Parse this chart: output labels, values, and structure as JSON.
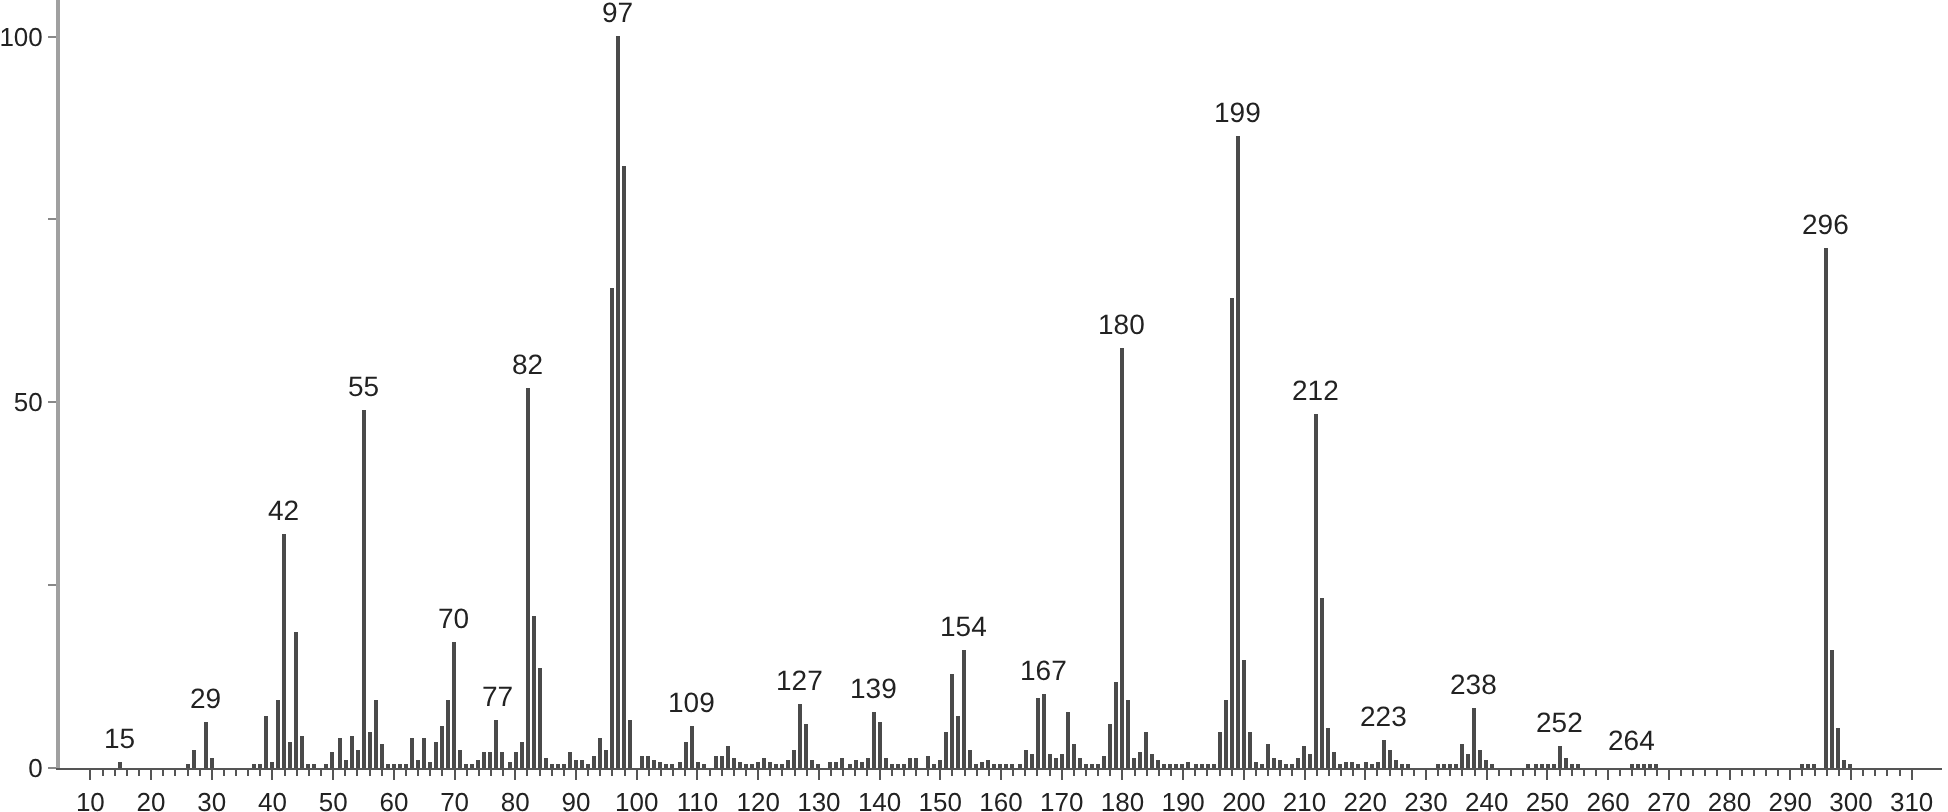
{
  "chart_data": {
    "type": "bar",
    "color": "#4a4a4a",
    "x": [
      15,
      26,
      27,
      29,
      30,
      37,
      38,
      39,
      40,
      41,
      42,
      43,
      44,
      45,
      46,
      47,
      49,
      50,
      51,
      52,
      53,
      54,
      55,
      56,
      57,
      58,
      59,
      60,
      61,
      62,
      63,
      64,
      65,
      66,
      67,
      68,
      69,
      70,
      71,
      72,
      73,
      74,
      75,
      76,
      77,
      78,
      79,
      80,
      81,
      82,
      83,
      84,
      85,
      86,
      87,
      88,
      89,
      90,
      91,
      92,
      93,
      94,
      95,
      96,
      97,
      98,
      99,
      101,
      102,
      103,
      104,
      105,
      106,
      107,
      108,
      109,
      110,
      111,
      113,
      114,
      115,
      116,
      117,
      118,
      119,
      120,
      121,
      122,
      123,
      124,
      125,
      126,
      127,
      128,
      129,
      130,
      132,
      133,
      134,
      135,
      136,
      137,
      138,
      139,
      140,
      141,
      142,
      143,
      144,
      145,
      146,
      148,
      149,
      150,
      151,
      152,
      153,
      154,
      155,
      156,
      157,
      158,
      159,
      160,
      161,
      162,
      163,
      164,
      165,
      166,
      167,
      168,
      169,
      170,
      171,
      172,
      173,
      174,
      175,
      176,
      177,
      178,
      179,
      180,
      181,
      182,
      183,
      184,
      185,
      186,
      187,
      188,
      189,
      190,
      191,
      192,
      193,
      194,
      195,
      196,
      197,
      198,
      199,
      200,
      201,
      202,
      203,
      204,
      205,
      206,
      207,
      208,
      209,
      210,
      211,
      212,
      213,
      214,
      215,
      216,
      217,
      218,
      219,
      220,
      221,
      222,
      223,
      224,
      225,
      226,
      227,
      232,
      233,
      234,
      235,
      236,
      237,
      238,
      239,
      240,
      241,
      247,
      248,
      249,
      250,
      251,
      252,
      253,
      254,
      255,
      264,
      265,
      266,
      267,
      268,
      292,
      293,
      294,
      296,
      297,
      298,
      299,
      300
    ],
    "values": [
      0.7,
      0.6,
      2.5,
      6.4,
      1.5,
      0.6,
      0.6,
      7.0,
      0.9,
      9.2,
      32.1,
      3.6,
      18.7,
      4.5,
      0.6,
      0.6,
      0.5,
      2.3,
      4.1,
      1.2,
      4.5,
      2.5,
      49.0,
      4.8,
      9.4,
      3.2,
      0.5,
      0.6,
      0.6,
      0.6,
      4.1,
      1.2,
      4.2,
      0.9,
      3.6,
      5.7,
      9.4,
      17.1,
      2.5,
      0.6,
      0.6,
      1.2,
      2.3,
      2.3,
      6.5,
      2.3,
      0.9,
      2.3,
      3.5,
      52.0,
      20.8,
      13.7,
      1.5,
      0.6,
      0.6,
      0.6,
      2.3,
      1.2,
      1.2,
      0.6,
      1.6,
      4.2,
      2.4,
      65.7,
      100,
      82.2,
      6.6,
      1.6,
      1.6,
      1.2,
      0.9,
      0.6,
      0.6,
      0.9,
      3.6,
      5.7,
      0.9,
      0.6,
      1.6,
      1.6,
      3.0,
      1.5,
      0.9,
      0.6,
      0.6,
      0.9,
      1.5,
      0.9,
      0.6,
      0.6,
      1.2,
      2.4,
      8.7,
      5.9,
      1.2,
      0.6,
      0.9,
      0.9,
      1.5,
      0.6,
      1.2,
      0.9,
      1.5,
      7.7,
      6.4,
      1.5,
      0.6,
      0.6,
      0.6,
      1.5,
      1.5,
      1.6,
      0.6,
      1.2,
      4.8,
      12.8,
      7.0,
      16.2,
      2.4,
      0.5,
      0.9,
      1.2,
      0.5,
      0.6,
      0.6,
      0.6,
      0.6,
      2.4,
      1.8,
      9.7,
      10.1,
      1.8,
      1.5,
      1.8,
      7.7,
      3.3,
      1.5,
      0.6,
      0.6,
      0.6,
      1.6,
      5.9,
      11.8,
      57.5,
      9.4,
      1.5,
      2.3,
      5.0,
      1.8,
      1.2,
      0.6,
      0.6,
      0.6,
      0.6,
      0.9,
      0.6,
      0.6,
      0.6,
      0.6,
      4.8,
      9.2,
      64.3,
      86.3,
      14.8,
      4.8,
      0.7,
      0.6,
      3.3,
      1.5,
      1.2,
      0.6,
      0.6,
      1.5,
      3.0,
      1.8,
      48.5,
      23.3,
      5.5,
      2.3,
      0.6,
      0.9,
      0.9,
      0.6,
      0.9,
      0.6,
      0.9,
      3.7,
      2.4,
      1.2,
      0.6,
      0.6,
      0.6,
      0.6,
      0.6,
      0.6,
      3.3,
      1.8,
      8.2,
      2.4,
      1.2,
      0.6,
      0.6,
      0.6,
      0.6,
      0.6,
      0.6,
      3.1,
      1.5,
      0.6,
      0.6,
      0.6,
      0.6,
      0.6,
      0.6,
      0.6,
      0.6,
      0.6,
      0.6,
      71.0,
      16.2,
      5.6,
      1.2,
      0.6
    ],
    "xlim": [
      5,
      315
    ],
    "xticks": [
      10,
      {
        "value": 12,
        "label": null
      },
      {
        "value": 14,
        "label": null
      },
      {
        "value": 16,
        "label": null
      },
      {
        "value": 18,
        "label": null
      },
      20,
      {
        "value": 22,
        "label": null
      },
      {
        "value": 24,
        "label": null
      },
      {
        "value": 26,
        "label": null
      },
      {
        "value": 28,
        "label": null
      },
      30,
      {
        "value": 32,
        "label": null
      },
      {
        "value": 34,
        "label": null
      },
      {
        "value": 36,
        "label": null
      },
      {
        "value": 38,
        "label": null
      },
      40,
      {
        "value": 42,
        "label": null
      },
      {
        "value": 44,
        "label": null
      },
      {
        "value": 46,
        "label": null
      },
      {
        "value": 48,
        "label": null
      },
      50,
      {
        "value": 52,
        "label": null
      },
      {
        "value": 54,
        "label": null
      },
      {
        "value": 56,
        "label": null
      },
      {
        "value": 58,
        "label": null
      },
      60,
      {
        "value": 62,
        "label": null
      },
      {
        "value": 64,
        "label": null
      },
      {
        "value": 66,
        "label": null
      },
      {
        "value": 68,
        "label": null
      },
      70,
      {
        "value": 72,
        "label": null
      },
      {
        "value": 74,
        "label": null
      },
      {
        "value": 76,
        "label": null
      },
      {
        "value": 78,
        "label": null
      },
      80,
      {
        "value": 82,
        "label": null
      },
      {
        "value": 84,
        "label": null
      },
      {
        "value": 86,
        "label": null
      },
      {
        "value": 88,
        "label": null
      },
      90,
      {
        "value": 92,
        "label": null
      },
      {
        "value": 94,
        "label": null
      },
      {
        "value": 96,
        "label": null
      },
      {
        "value": 98,
        "label": null
      },
      100,
      {
        "value": 102,
        "label": null
      },
      {
        "value": 104,
        "label": null
      },
      {
        "value": 106,
        "label": null
      },
      {
        "value": 108,
        "label": null
      },
      110,
      {
        "value": 112,
        "label": null
      },
      {
        "value": 114,
        "label": null
      },
      {
        "value": 116,
        "label": null
      },
      {
        "value": 118,
        "label": null
      },
      120,
      {
        "value": 122,
        "label": null
      },
      {
        "value": 124,
        "label": null
      },
      {
        "value": 126,
        "label": null
      },
      {
        "value": 128,
        "label": null
      },
      130,
      {
        "value": 132,
        "label": null
      },
      {
        "value": 134,
        "label": null
      },
      {
        "value": 136,
        "label": null
      },
      {
        "value": 138,
        "label": null
      },
      140,
      {
        "value": 142,
        "label": null
      },
      {
        "value": 144,
        "label": null
      },
      {
        "value": 146,
        "label": null
      },
      {
        "value": 148,
        "label": null
      },
      150,
      {
        "value": 152,
        "label": null
      },
      {
        "value": 154,
        "label": null
      },
      {
        "value": 156,
        "label": null
      },
      {
        "value": 158,
        "label": null
      },
      160,
      {
        "value": 162,
        "label": null
      },
      {
        "value": 164,
        "label": null
      },
      {
        "value": 166,
        "label": null
      },
      {
        "value": 168,
        "label": null
      },
      170,
      {
        "value": 172,
        "label": null
      },
      {
        "value": 174,
        "label": null
      },
      {
        "value": 176,
        "label": null
      },
      {
        "value": 178,
        "label": null
      },
      180,
      {
        "value": 182,
        "label": null
      },
      {
        "value": 184,
        "label": null
      },
      {
        "value": 186,
        "label": null
      },
      {
        "value": 188,
        "label": null
      },
      190,
      {
        "value": 192,
        "label": null
      },
      {
        "value": 194,
        "label": null
      },
      {
        "value": 196,
        "label": null
      },
      {
        "value": 198,
        "label": null
      },
      200,
      {
        "value": 202,
        "label": null
      },
      {
        "value": 204,
        "label": null
      },
      {
        "value": 206,
        "label": null
      },
      {
        "value": 208,
        "label": null
      },
      210,
      {
        "value": 212,
        "label": null
      },
      {
        "value": 214,
        "label": null
      },
      {
        "value": 216,
        "label": null
      },
      {
        "value": 218,
        "label": null
      },
      220,
      {
        "value": 222,
        "label": null
      },
      {
        "value": 224,
        "label": null
      },
      {
        "value": 226,
        "label": null
      },
      {
        "value": 228,
        "label": null
      },
      230,
      {
        "value": 232,
        "label": null
      },
      {
        "value": 234,
        "label": null
      },
      {
        "value": 236,
        "label": null
      },
      {
        "value": 238,
        "label": null
      },
      240,
      {
        "value": 242,
        "label": null
      },
      {
        "value": 244,
        "label": null
      },
      {
        "value": 246,
        "label": null
      },
      {
        "value": 248,
        "label": null
      },
      250,
      {
        "value": 252,
        "label": null
      },
      {
        "value": 254,
        "label": null
      },
      {
        "value": 256,
        "label": null
      },
      {
        "value": 258,
        "label": null
      },
      260,
      {
        "value": 262,
        "label": null
      },
      {
        "value": 264,
        "label": null
      },
      {
        "value": 266,
        "label": null
      },
      {
        "value": 268,
        "label": null
      },
      270,
      {
        "value": 272,
        "label": null
      },
      {
        "value": 274,
        "label": null
      },
      {
        "value": 276,
        "label": null
      },
      {
        "value": 278,
        "label": null
      },
      280,
      {
        "value": 282,
        "label": null
      },
      {
        "value": 284,
        "label": null
      },
      {
        "value": 286,
        "label": null
      },
      {
        "value": 288,
        "label": null
      },
      290,
      {
        "value": 292,
        "label": null
      },
      {
        "value": 294,
        "label": null
      },
      {
        "value": 296,
        "label": null
      },
      {
        "value": 298,
        "label": null
      },
      300,
      {
        "value": 302,
        "label": null
      },
      {
        "value": 304,
        "label": null
      },
      {
        "value": 306,
        "label": null
      },
      {
        "value": 308,
        "label": null
      },
      310
    ],
    "ylim": [
      0,
      105
    ],
    "yticks": [
      0,
      {
        "value": 25,
        "label": null
      },
      50,
      {
        "value": 75,
        "label": null
      },
      100
    ],
    "annotations": [
      {
        "text": "15",
        "x": 15,
        "y": 0.7
      },
      {
        "text": "29",
        "x": 29,
        "y": 6.4
      },
      {
        "text": "42",
        "x": 42,
        "y": 32.1
      },
      {
        "text": "55",
        "x": 55,
        "y": 49.0
      },
      {
        "text": "70",
        "x": 70,
        "y": 17.1
      },
      {
        "text": "77",
        "x": 77,
        "y": 6.5
      },
      {
        "text": "82",
        "x": 82,
        "y": 52.0
      },
      {
        "text": "97",
        "x": 97,
        "y": 100
      },
      {
        "text": "109",
        "x": 109,
        "y": 5.7
      },
      {
        "text": "127",
        "x": 127,
        "y": 8.7
      },
      {
        "text": "139",
        "x": 139,
        "y": 7.7
      },
      {
        "text": "154",
        "x": 154,
        "y": 16.2
      },
      {
        "text": "167",
        "x": 167,
        "y": 10.1
      },
      {
        "text": "180",
        "x": 180,
        "y": 57.5
      },
      {
        "text": "199",
        "x": 199,
        "y": 86.3
      },
      {
        "text": "212",
        "x": 212,
        "y": 48.5
      },
      {
        "text": "223",
        "x": 223,
        "y": 3.7
      },
      {
        "text": "238",
        "x": 238,
        "y": 8.2
      },
      {
        "text": "252",
        "x": 252,
        "y": 3.1
      },
      {
        "text": "264",
        "x": 264,
        "y": 0.6
      },
      {
        "text": "296",
        "x": 296,
        "y": 71.0
      }
    ]
  }
}
